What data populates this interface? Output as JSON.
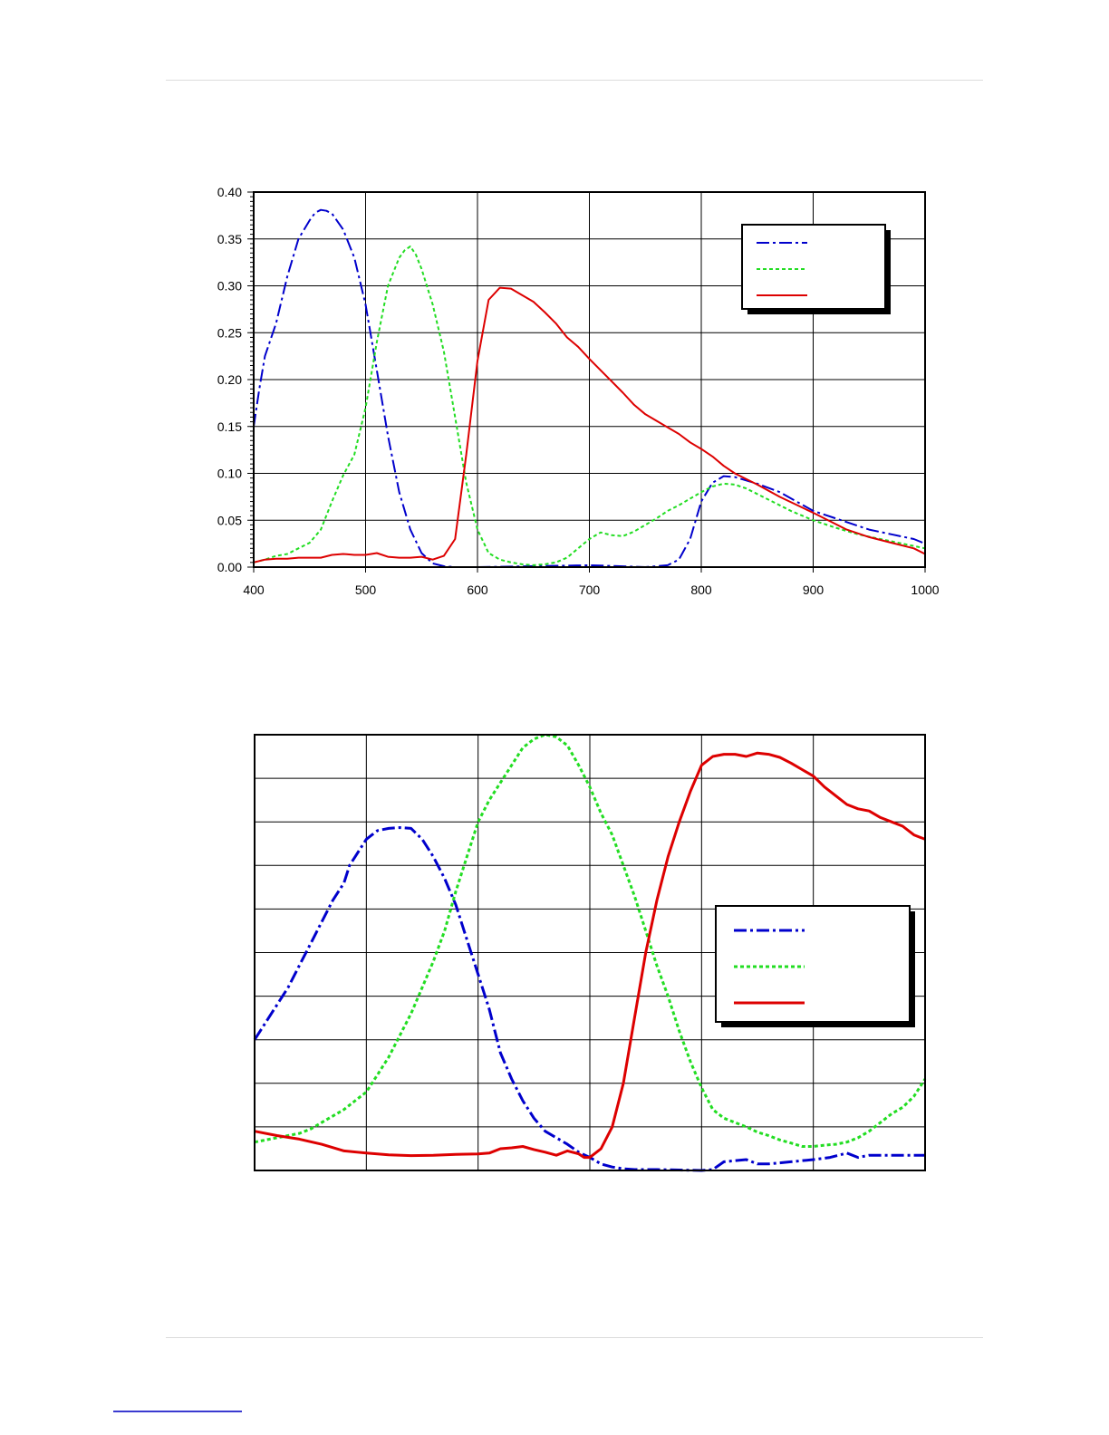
{
  "page": {},
  "chart_data": [
    {
      "type": "line",
      "title": "",
      "xlabel": "",
      "ylabel": "",
      "xlim": [
        400,
        1000
      ],
      "ylim": [
        0,
        0.4
      ],
      "grid": true,
      "legend_position": "top-right",
      "x_ticks": [
        400,
        500,
        600,
        700,
        800,
        900,
        1000
      ],
      "x_tick_labels": [
        "400",
        "500",
        "600",
        "700",
        "800",
        "900",
        "1000"
      ],
      "y_ticks": [
        0,
        0.05,
        0.1,
        0.15,
        0.2,
        0.25,
        0.3,
        0.35,
        0.4
      ],
      "y_tick_labels": [
        "0.00",
        "0.05",
        "0.10",
        "0.15",
        "0.20",
        "0.25",
        "0.30",
        "0.35",
        "0.40"
      ],
      "series": [
        {
          "color": "#0000cc",
          "style": "dash-dot",
          "x": [
            400,
            405,
            410,
            420,
            430,
            440,
            450,
            455,
            460,
            465,
            470,
            480,
            490,
            500,
            510,
            520,
            530,
            540,
            550,
            560,
            570,
            580,
            590,
            600,
            650,
            700,
            750,
            770,
            780,
            790,
            800,
            810,
            820,
            830,
            850,
            870,
            900,
            930,
            950,
            970,
            990,
            1000
          ],
          "y": [
            0.15,
            0.19,
            0.225,
            0.26,
            0.31,
            0.35,
            0.37,
            0.378,
            0.381,
            0.38,
            0.377,
            0.36,
            0.33,
            0.28,
            0.21,
            0.14,
            0.08,
            0.04,
            0.015,
            0.004,
            0.001,
            0.0,
            0.0,
            0.0,
            0.001,
            0.002,
            0.0,
            0.002,
            0.008,
            0.03,
            0.07,
            0.09,
            0.097,
            0.096,
            0.089,
            0.08,
            0.06,
            0.048,
            0.04,
            0.035,
            0.03,
            0.025
          ]
        },
        {
          "color": "#22dd22",
          "style": "dotted",
          "x": [
            400,
            410,
            420,
            430,
            440,
            450,
            460,
            470,
            480,
            490,
            500,
            510,
            520,
            530,
            535,
            540,
            545,
            550,
            560,
            570,
            580,
            590,
            600,
            610,
            620,
            630,
            640,
            650,
            660,
            670,
            680,
            690,
            700,
            710,
            720,
            730,
            740,
            750,
            760,
            770,
            780,
            790,
            800,
            810,
            820,
            830,
            840,
            850,
            860,
            870,
            880,
            890,
            900,
            920,
            940,
            960,
            980,
            1000
          ],
          "y": [
            0.005,
            0.008,
            0.012,
            0.014,
            0.02,
            0.026,
            0.04,
            0.07,
            0.098,
            0.12,
            0.17,
            0.24,
            0.3,
            0.33,
            0.338,
            0.342,
            0.333,
            0.318,
            0.28,
            0.23,
            0.16,
            0.09,
            0.04,
            0.015,
            0.008,
            0.005,
            0.003,
            0.002,
            0.003,
            0.005,
            0.01,
            0.02,
            0.03,
            0.037,
            0.034,
            0.033,
            0.038,
            0.045,
            0.052,
            0.06,
            0.066,
            0.073,
            0.08,
            0.086,
            0.089,
            0.088,
            0.084,
            0.078,
            0.072,
            0.066,
            0.06,
            0.055,
            0.05,
            0.042,
            0.035,
            0.03,
            0.025,
            0.02
          ]
        },
        {
          "color": "#dd0000",
          "style": "solid",
          "x": [
            400,
            410,
            420,
            430,
            440,
            450,
            460,
            470,
            480,
            490,
            500,
            510,
            520,
            530,
            540,
            550,
            560,
            570,
            580,
            590,
            600,
            610,
            620,
            630,
            640,
            650,
            660,
            670,
            680,
            690,
            700,
            710,
            720,
            730,
            740,
            750,
            760,
            770,
            780,
            790,
            800,
            810,
            820,
            830,
            850,
            870,
            900,
            930,
            950,
            970,
            990,
            1000
          ],
          "y": [
            0.005,
            0.008,
            0.009,
            0.009,
            0.01,
            0.01,
            0.01,
            0.013,
            0.014,
            0.013,
            0.013,
            0.015,
            0.011,
            0.01,
            0.01,
            0.011,
            0.008,
            0.012,
            0.03,
            0.12,
            0.22,
            0.285,
            0.298,
            0.297,
            0.29,
            0.283,
            0.272,
            0.26,
            0.245,
            0.235,
            0.222,
            0.21,
            0.198,
            0.186,
            0.173,
            0.163,
            0.156,
            0.149,
            0.142,
            0.133,
            0.126,
            0.118,
            0.108,
            0.1,
            0.088,
            0.075,
            0.058,
            0.04,
            0.032,
            0.026,
            0.02,
            0.014
          ]
        }
      ]
    },
    {
      "type": "line",
      "title": "",
      "xlabel": "",
      "ylabel": "",
      "xlim": [
        400,
        1000
      ],
      "ylim": [
        0,
        1.0
      ],
      "grid": true,
      "legend_position": "right",
      "x_ticks": [
        400,
        500,
        600,
        700,
        800,
        900,
        1000
      ],
      "y_ticks": [
        0,
        0.1,
        0.2,
        0.3,
        0.4,
        0.5,
        0.6,
        0.7,
        0.8,
        0.9,
        1.0
      ],
      "series": [
        {
          "color": "#0000cc",
          "style": "dash-dot",
          "x": [
            400,
            410,
            420,
            430,
            440,
            450,
            460,
            470,
            480,
            485,
            490,
            500,
            505,
            510,
            520,
            530,
            540,
            550,
            560,
            570,
            580,
            590,
            600,
            610,
            620,
            630,
            640,
            650,
            660,
            670,
            680,
            690,
            700,
            710,
            720,
            730,
            740,
            760,
            780,
            800,
            810,
            820,
            840,
            850,
            860,
            880,
            900,
            915,
            930,
            940,
            950,
            960,
            980,
            1000
          ],
          "y": [
            0.3,
            0.34,
            0.38,
            0.42,
            0.47,
            0.52,
            0.57,
            0.62,
            0.66,
            0.7,
            0.72,
            0.76,
            0.77,
            0.78,
            0.785,
            0.787,
            0.785,
            0.76,
            0.72,
            0.67,
            0.61,
            0.53,
            0.45,
            0.37,
            0.27,
            0.21,
            0.16,
            0.12,
            0.09,
            0.075,
            0.06,
            0.042,
            0.03,
            0.015,
            0.008,
            0.004,
            0.002,
            0.002,
            0.001,
            0.0,
            0.002,
            0.02,
            0.025,
            0.015,
            0.015,
            0.02,
            0.025,
            0.03,
            0.04,
            0.03,
            0.035,
            0.035,
            0.035,
            0.035
          ]
        },
        {
          "color": "#22dd22",
          "style": "dotted",
          "x": [
            400,
            410,
            420,
            430,
            440,
            450,
            460,
            470,
            480,
            490,
            500,
            510,
            520,
            530,
            540,
            550,
            560,
            570,
            580,
            590,
            600,
            610,
            620,
            630,
            640,
            650,
            660,
            670,
            680,
            690,
            700,
            710,
            720,
            730,
            740,
            750,
            760,
            770,
            780,
            790,
            800,
            810,
            820,
            830,
            840,
            850,
            860,
            870,
            880,
            890,
            900,
            910,
            920,
            930,
            940,
            950,
            960,
            970,
            980,
            990,
            1000
          ],
          "y": [
            0.065,
            0.07,
            0.075,
            0.08,
            0.085,
            0.095,
            0.11,
            0.125,
            0.14,
            0.16,
            0.18,
            0.22,
            0.26,
            0.31,
            0.36,
            0.42,
            0.48,
            0.55,
            0.64,
            0.72,
            0.8,
            0.85,
            0.89,
            0.93,
            0.97,
            0.99,
            1.0,
            0.995,
            0.975,
            0.93,
            0.88,
            0.82,
            0.77,
            0.7,
            0.63,
            0.55,
            0.47,
            0.4,
            0.32,
            0.25,
            0.19,
            0.14,
            0.12,
            0.11,
            0.1,
            0.088,
            0.08,
            0.07,
            0.063,
            0.055,
            0.055,
            0.058,
            0.06,
            0.065,
            0.075,
            0.09,
            0.11,
            0.13,
            0.145,
            0.17,
            0.21
          ]
        },
        {
          "color": "#dd0000",
          "style": "solid",
          "x": [
            400,
            420,
            440,
            460,
            480,
            500,
            520,
            540,
            560,
            580,
            600,
            610,
            620,
            630,
            640,
            650,
            660,
            670,
            680,
            690,
            695,
            700,
            710,
            720,
            730,
            740,
            750,
            760,
            770,
            780,
            790,
            800,
            810,
            820,
            830,
            840,
            850,
            860,
            870,
            880,
            890,
            900,
            910,
            920,
            930,
            940,
            950,
            960,
            970,
            980,
            990,
            1000
          ],
          "y": [
            0.09,
            0.08,
            0.072,
            0.06,
            0.045,
            0.04,
            0.036,
            0.034,
            0.035,
            0.037,
            0.038,
            0.04,
            0.05,
            0.052,
            0.055,
            0.048,
            0.042,
            0.035,
            0.045,
            0.038,
            0.03,
            0.03,
            0.05,
            0.1,
            0.2,
            0.35,
            0.5,
            0.62,
            0.72,
            0.8,
            0.87,
            0.93,
            0.95,
            0.955,
            0.955,
            0.95,
            0.958,
            0.955,
            0.948,
            0.935,
            0.92,
            0.905,
            0.88,
            0.86,
            0.84,
            0.83,
            0.825,
            0.81,
            0.8,
            0.79,
            0.77,
            0.76
          ]
        }
      ]
    }
  ]
}
